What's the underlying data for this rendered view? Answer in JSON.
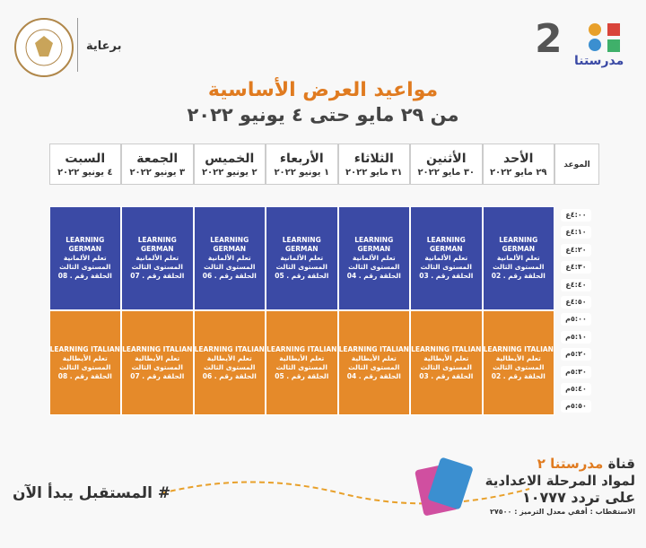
{
  "header": {
    "brand": "مدرستنا",
    "channel": "2",
    "sponsor": "برعاية"
  },
  "title": "مواعيد العرض الأساسية",
  "subtitle": "من ٢٩ مايو حتى ٤ يونيو ٢٠٢٢",
  "table": {
    "time_header": "الموعد",
    "days": [
      {
        "name": "الأحد",
        "date": "٢٩ مايو ٢٠٢٢"
      },
      {
        "name": "الأثنين",
        "date": "٣٠ مايو ٢٠٢٢"
      },
      {
        "name": "الثلاثاء",
        "date": "٣١ مايو ٢٠٢٢"
      },
      {
        "name": "الأربعاء",
        "date": "١ يونيو ٢٠٢٢"
      },
      {
        "name": "الخميس",
        "date": "٢ يونيو ٢٠٢٢"
      },
      {
        "name": "الجمعة",
        "date": "٣ يونيو ٢٠٢٢"
      },
      {
        "name": "السبت",
        "date": "٤ يونيو ٢٠٢٢"
      }
    ],
    "times": [
      "٤:٠٠ع",
      "٤:١٠ع",
      "٤:٢٠ع",
      "٤:٣٠ع",
      "٤:٤٠ع",
      "٤:٥٠ع",
      "٥:٠٠م",
      "٥:١٠م",
      "٥:٢٠م",
      "٥:٣٠م",
      "٥:٤٠م",
      "٥:٥٠م"
    ],
    "blocks": [
      {
        "cells": [
          {
            "title": "LEARNING GERMAN",
            "subject": "تعلم الألمانية",
            "level": "المستوى الثالث",
            "episode": "الحلقة رقم . 02"
          },
          {
            "title": "LEARNING GERMAN",
            "subject": "تعلم الألمانية",
            "level": "المستوى الثالث",
            "episode": "الحلقة رقم . 03"
          },
          {
            "title": "LEARNING GERMAN",
            "subject": "تعلم الألمانية",
            "level": "المستوى الثالث",
            "episode": "الحلقة رقم . 04"
          },
          {
            "title": "LEARNING GERMAN",
            "subject": "تعلم الألمانية",
            "level": "المستوى الثالث",
            "episode": "الحلقة رقم . 05"
          },
          {
            "title": "LEARNING GERMAN",
            "subject": "تعلم الألمانية",
            "level": "المستوى الثالث",
            "episode": "الحلقة رقم . 06"
          },
          {
            "title": "LEARNING GERMAN",
            "subject": "تعلم الألمانية",
            "level": "المستوى الثالث",
            "episode": "الحلقة رقم . 07"
          },
          {
            "title": "LEARNING GERMAN",
            "subject": "تعلم الألمانية",
            "level": "المستوى الثالث",
            "episode": "الحلقة رقم . 08"
          }
        ]
      },
      {
        "cells": [
          {
            "title": "LEARNING ITALIAN",
            "subject": "تعلم الأيطالية",
            "level": "المستوى الثالث",
            "episode": "الحلقة رقم . 02"
          },
          {
            "title": "LEARNING ITALIAN",
            "subject": "تعلم الأيطالية",
            "level": "المستوى الثالث",
            "episode": "الحلقة رقم . 03"
          },
          {
            "title": "LEARNING ITALIAN",
            "subject": "تعلم الأيطالية",
            "level": "المستوى الثالث",
            "episode": "الحلقة رقم . 04"
          },
          {
            "title": "LEARNING ITALIAN",
            "subject": "تعلم الأيطالية",
            "level": "المستوى الثالث",
            "episode": "الحلقة رقم . 05"
          },
          {
            "title": "LEARNING ITALIAN",
            "subject": "تعلم الأيطالية",
            "level": "المستوى الثالث",
            "episode": "الحلقة رقم . 06"
          },
          {
            "title": "LEARNING ITALIAN",
            "subject": "تعلم الأيطالية",
            "level": "المستوى الثالث",
            "episode": "الحلقة رقم . 07"
          },
          {
            "title": "LEARNING ITALIAN",
            "subject": "تعلم الأيطالية",
            "level": "المستوى الثالث",
            "episode": "الحلقة رقم . 08"
          }
        ]
      }
    ]
  },
  "footer": {
    "slogan": "# المستقبل يبدأ الآن",
    "channel_label": "قناة",
    "channel_name": "مدرستنا ٢",
    "audience": "لمواد المرحلة الاعدادية",
    "frequency": "على تردد ١٠٧٧٧",
    "tech": "الاستقطاب : أفقي معدل الترميز : ٢٧٥٠٠"
  }
}
